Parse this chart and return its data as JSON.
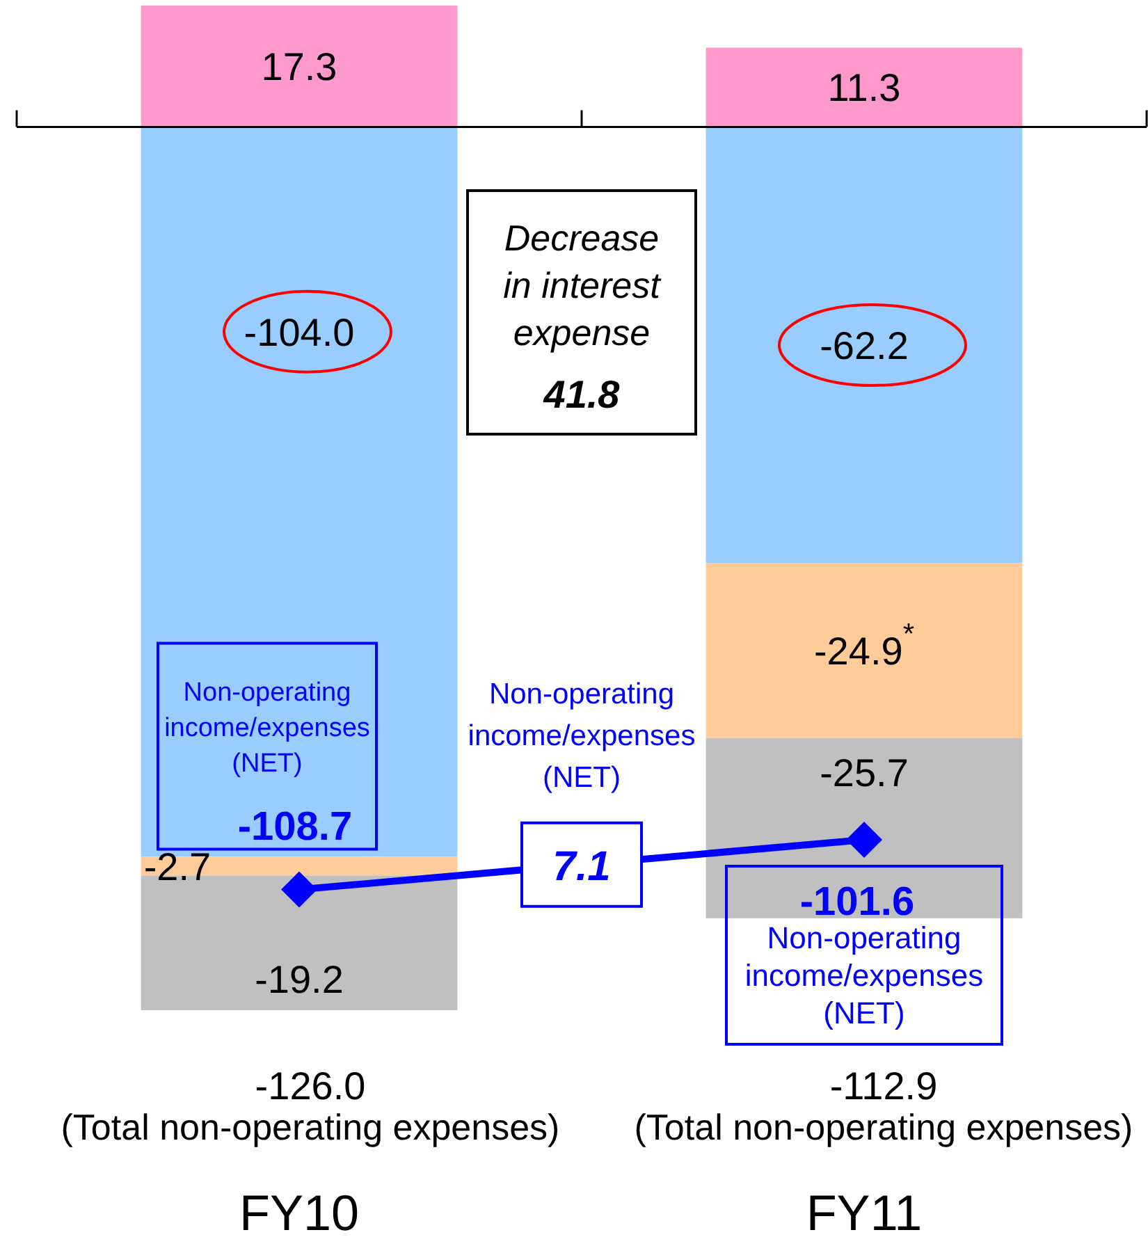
{
  "chart_data": {
    "type": "bar",
    "stacked": true,
    "categories": [
      "FY10",
      "FY11"
    ],
    "series": [
      {
        "color": "#ff99cc",
        "values": [
          17.3,
          11.3
        ],
        "value_labels": [
          "17.3",
          "11.3"
        ]
      },
      {
        "color": "#99ccff",
        "values": [
          -104.0,
          -62.2
        ],
        "value_labels": [
          "-104.0",
          "-62.2"
        ]
      },
      {
        "color": "#ffcc99",
        "values": [
          -2.7,
          -24.9
        ],
        "value_labels": [
          "-2.7",
          "-24.9$^{*}$"
        ]
      },
      {
        "color": "#c0c0c0",
        "values": [
          -19.2,
          -25.7
        ],
        "value_labels": [
          "-19.2",
          "-25.7"
        ]
      },
      {
        "type": "line",
        "name": "Non-operating\nincome/expenses\n(NET)",
        "color": "#0000ff",
        "marker": "diamond",
        "values": [
          -108.7,
          -101.6
        ],
        "value_labels": [
          "-108.7",
          "-101.6"
        ]
      }
    ],
    "annotations": [
      "Decrease\nin interest\nexpense",
      "41.8",
      "7.1",
      "Non-operating\nincome/expenses\n(NET)",
      "Non-operating\nincome/expenses\n(NET)",
      "-126.0\n(Total non-operating expenses)",
      "-112.9\n(Total non-operating expenses)"
    ]
  }
}
